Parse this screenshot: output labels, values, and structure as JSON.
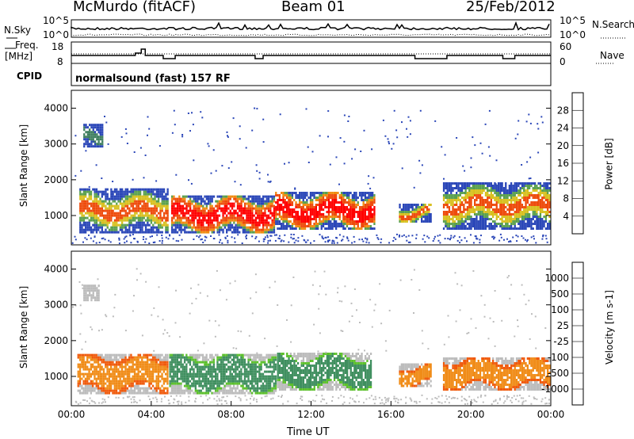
{
  "header": {
    "station": "McMurdo (fitACF)",
    "beam": "Beam 01",
    "date": "25/Feb/2012"
  },
  "top_panels": {
    "nsky_label": "N.Sky",
    "nsearch_label": "N.Search",
    "nsky_ticks": [
      "10^5",
      "10^0"
    ],
    "nsearch_ticks": [
      "10^5",
      "10^0"
    ],
    "freq_label": "Freq.",
    "freq_unit": "[MHz]",
    "freq_ticks": [
      "18",
      "8"
    ],
    "nave_label": "Nave",
    "nave_ticks": [
      "60",
      "0"
    ],
    "cpid_label": "CPID",
    "cpid_value": "normalsound (fast) 157 RF"
  },
  "chart_data": [
    {
      "type": "heatmap",
      "name": "power-panel",
      "ylabel": "Slant Range [km]",
      "yticks": [
        "1000",
        "2000",
        "3000",
        "4000"
      ],
      "ylim": [
        180,
        4500
      ],
      "xlim": [
        "00:00",
        "24:00"
      ],
      "colorbar": {
        "label": "Power [dB]",
        "ticks": [
          "4",
          "8",
          "12",
          "16",
          "20",
          "24",
          "28"
        ],
        "colors": [
          "#0a1aff",
          "#2b47b8",
          "#3f7f5f",
          "#5aa04e",
          "#d8c020",
          "#f08c10",
          "#ee4b0c",
          "#ff0000"
        ]
      },
      "echo_regions": [
        {
          "t": [
            0.4,
            4.8
          ],
          "r": [
            500,
            1700
          ],
          "level": "mid"
        },
        {
          "t": [
            0.6,
            1.6
          ],
          "r": [
            2900,
            3500
          ],
          "level": "low"
        },
        {
          "t": [
            5.0,
            10.2
          ],
          "r": [
            500,
            1500
          ],
          "level": "high"
        },
        {
          "t": [
            10.2,
            15.2
          ],
          "r": [
            600,
            1600
          ],
          "level": "high"
        },
        {
          "t": [
            16.4,
            18.0
          ],
          "r": [
            800,
            1300
          ],
          "level": "mid"
        },
        {
          "t": [
            18.6,
            23.9
          ],
          "r": [
            600,
            1900
          ],
          "level": "mid"
        }
      ]
    },
    {
      "type": "heatmap",
      "name": "velocity-panel",
      "ylabel": "Slant Range [km]",
      "yticks": [
        "1000",
        "2000",
        "3000",
        "4000"
      ],
      "ylim": [
        180,
        4500
      ],
      "xlim": [
        "00:00",
        "24:00"
      ],
      "xticks": [
        "00:00",
        "04:00",
        "08:00",
        "12:00",
        "16:00",
        "20:00",
        "00:00"
      ],
      "xlabel": "Time UT",
      "colorbar": {
        "label": "Velocity [m s-1]",
        "ticks": [
          "1000",
          "500",
          "100",
          "25",
          "-25",
          "-100",
          "-500",
          "-1000"
        ],
        "colors": [
          "#1f3ad8",
          "#3f6fb0",
          "#3f8f5f",
          "#5cc02c",
          "#bcbcbc",
          "#f8c032",
          "#f08c18",
          "#f05a0c",
          "#ff0000"
        ]
      },
      "echo_regions": [
        {
          "t": [
            0.3,
            4.8
          ],
          "r": [
            500,
            1600
          ],
          "color": "orange"
        },
        {
          "t": [
            0.6,
            1.4
          ],
          "r": [
            3100,
            3500
          ],
          "color": "gray"
        },
        {
          "t": [
            4.9,
            10.2
          ],
          "r": [
            500,
            1600
          ],
          "color": "green"
        },
        {
          "t": [
            10.3,
            15.0
          ],
          "r": [
            600,
            1600
          ],
          "color": "green"
        },
        {
          "t": [
            16.4,
            18.0
          ],
          "r": [
            700,
            1300
          ],
          "color": "orange"
        },
        {
          "t": [
            18.6,
            23.9
          ],
          "r": [
            600,
            1500
          ],
          "color": "orange"
        }
      ]
    }
  ]
}
